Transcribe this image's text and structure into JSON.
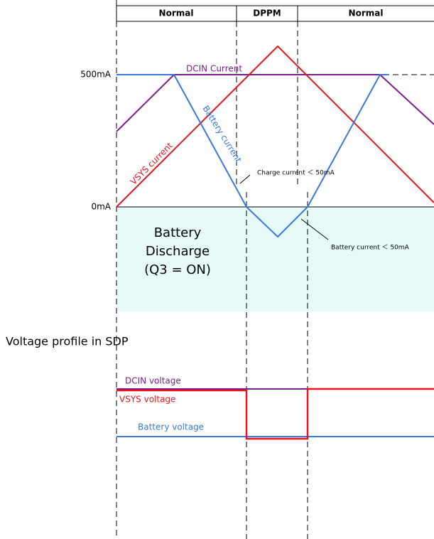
{
  "header": {
    "phases": [
      "Normal",
      "DPPM",
      "Normal"
    ]
  },
  "current_profile": {
    "axis_labels": [
      "500mA",
      "0mA"
    ],
    "dcin_label": "DCIN Current",
    "battery_label": "Battery current",
    "vsys_label": "VSYS current",
    "charge_note": "Charge current ＜ 50mA",
    "battery_note": "Battery current ＜ 50mA",
    "discharge_lines": [
      "Battery",
      "Discharge",
      "(Q3 = ON)"
    ]
  },
  "voltage_profile": {
    "title": "Voltage profile in SDP",
    "dcin_label": "DCIN voltage",
    "vsys_label": "VSYS voltage",
    "battery_label": "Battery voltage"
  }
}
